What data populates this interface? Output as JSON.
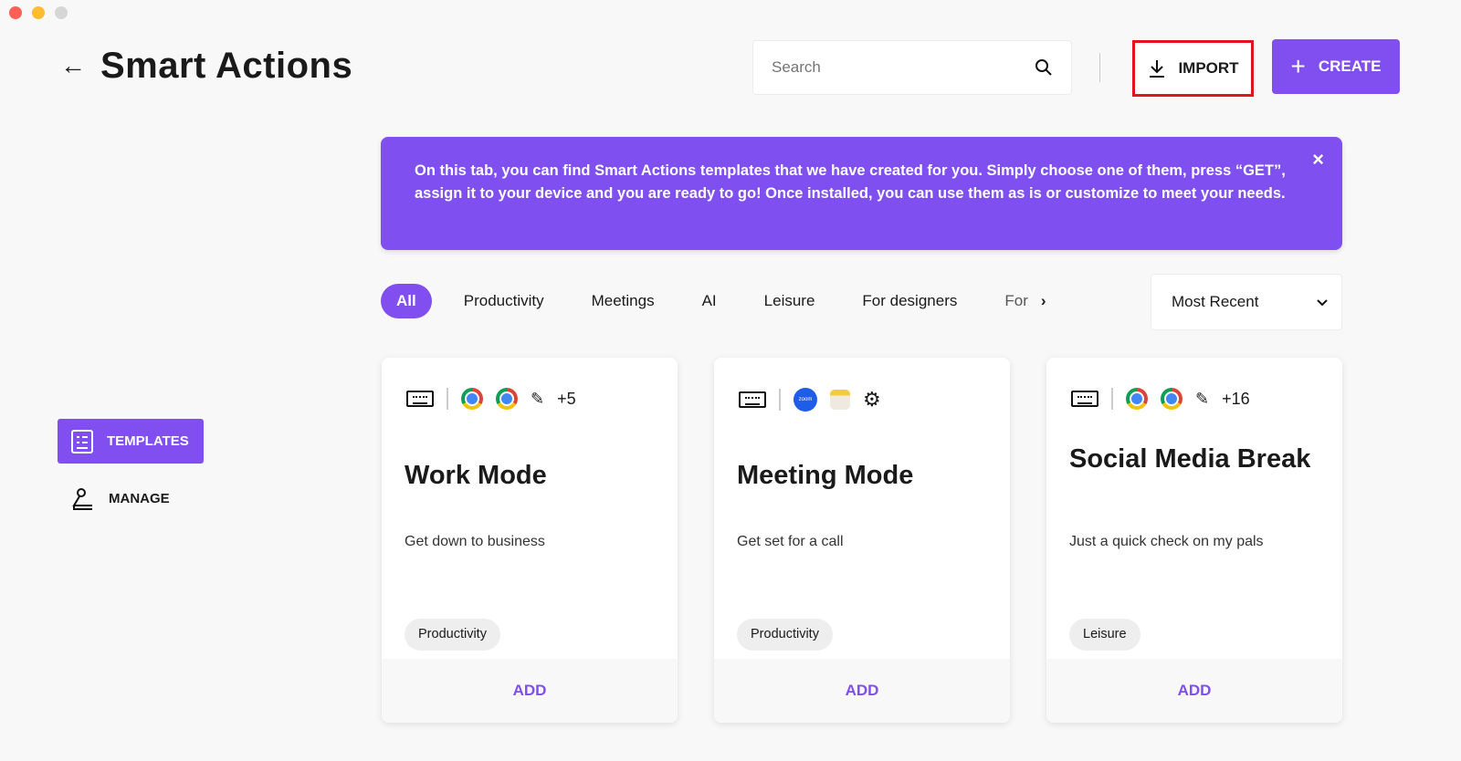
{
  "header": {
    "title": "Smart Actions",
    "search_placeholder": "Search",
    "import_label": "IMPORT",
    "create_label": "CREATE"
  },
  "banner": {
    "text": "On this tab, you can find Smart Actions templates that we have created for you. Simply choose one of them, press “GET”, assign it to your device and you are ready to go! Once installed, you can use them as is or customize to meet your needs.",
    "close": "×"
  },
  "filters": [
    "All",
    "Productivity",
    "Meetings",
    "AI",
    "Leisure",
    "For designers",
    "For"
  ],
  "sort": {
    "selected": "Most Recent"
  },
  "sidebar": {
    "items": [
      {
        "label": "TEMPLATES",
        "active": true
      },
      {
        "label": "MANAGE",
        "active": false
      }
    ]
  },
  "cards": [
    {
      "title": "Work Mode",
      "description": "Get down to business",
      "tag": "Productivity",
      "extra": "+5",
      "action": "ADD",
      "apps": [
        "keyboard",
        "chrome",
        "chrome",
        "pencil"
      ]
    },
    {
      "title": "Meeting Mode",
      "description": "Get set for a call",
      "tag": "Productivity",
      "action": "ADD",
      "apps": [
        "keyboard",
        "zoom",
        "notes",
        "gear"
      ],
      "zoom_label": "zoom"
    },
    {
      "title": "Social Media Break",
      "description": "Just a quick check on my pals",
      "tag": "Leisure",
      "extra": "+16",
      "action": "ADD",
      "apps": [
        "keyboard",
        "chrome",
        "chrome",
        "pencil"
      ]
    }
  ],
  "colors": {
    "accent": "#814ef0",
    "highlight": "#e0141c",
    "background": "#f8f8f8"
  }
}
